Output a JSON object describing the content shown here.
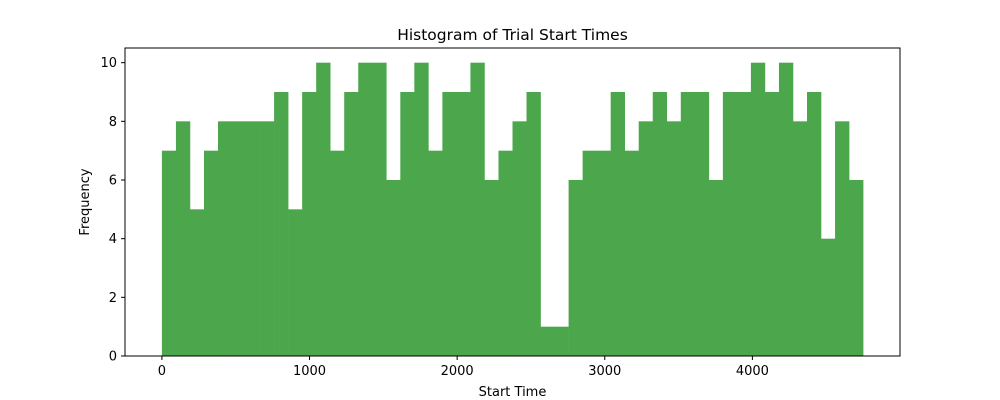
{
  "chart_data": {
    "type": "bar",
    "subtype": "histogram",
    "title": "Histogram of Trial Start Times",
    "xlabel": "Start Time",
    "ylabel": "Frequency",
    "xlim": [
      -250,
      5000
    ],
    "ylim": [
      0,
      10.5
    ],
    "xticks": [
      0,
      1000,
      2000,
      3000,
      4000
    ],
    "yticks": [
      0,
      2,
      4,
      6,
      8,
      10
    ],
    "bin_start": 0,
    "bin_width": 95,
    "values": [
      7,
      8,
      5,
      7,
      8,
      8,
      8,
      8,
      9,
      5,
      9,
      10,
      7,
      9,
      10,
      10,
      6,
      9,
      10,
      7,
      9,
      9,
      10,
      6,
      7,
      8,
      9,
      1,
      1,
      6,
      7,
      7,
      9,
      7,
      8,
      9,
      8,
      9,
      9,
      6,
      9,
      9,
      10,
      9,
      10,
      8,
      9,
      4,
      8,
      6
    ],
    "bar_color": "#4ca64c",
    "grid": false
  }
}
